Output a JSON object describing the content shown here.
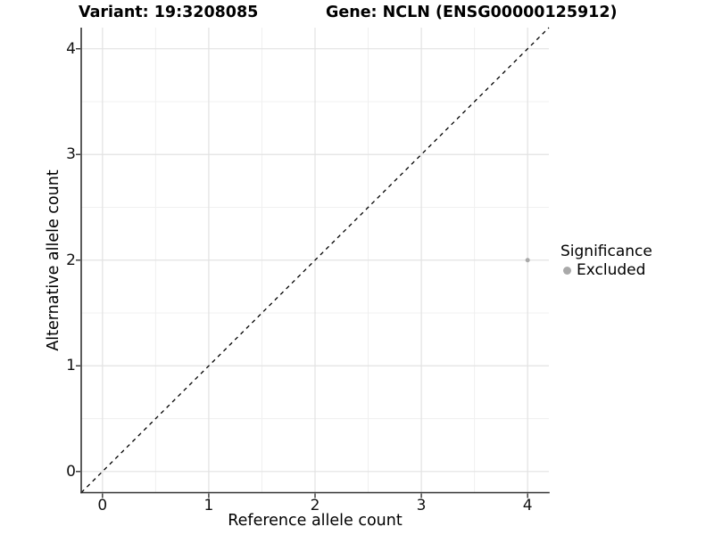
{
  "chart_data": {
    "type": "scatter",
    "title_left": "Variant: 19:3208085",
    "title_right": "Gene: NCLN (ENSG00000125912)",
    "xlabel": "Reference allele count",
    "ylabel": "Alternative allele count",
    "xlim": [
      -0.2,
      4.2
    ],
    "ylim": [
      -0.2,
      4.2
    ],
    "x_ticks": [
      0,
      1,
      2,
      3,
      4
    ],
    "y_ticks": [
      0,
      1,
      2,
      3,
      4
    ],
    "x_minor_ticks": [
      0.5,
      1.5,
      2.5,
      3.5
    ],
    "y_minor_ticks": [
      0.5,
      1.5,
      2.5,
      3.5
    ],
    "grid": true,
    "legend_position": "right",
    "reference_line": {
      "slope": 1,
      "intercept": 0,
      "style": "dashed"
    },
    "series": [
      {
        "name": "Excluded",
        "marker": "circle",
        "color": "#a9a9a9",
        "points": [
          {
            "x": 4,
            "y": 2
          }
        ]
      }
    ],
    "legend": {
      "title": "Significance",
      "items": [
        {
          "label": "Excluded",
          "color": "#a9a9a9",
          "marker": "circle"
        }
      ]
    },
    "colors": {
      "background": "#ffffff",
      "grid_major": "#e2e2e2",
      "grid_minor": "#f0f0f0",
      "axis_line": "#333333",
      "tick_mark": "#333333",
      "reference_line": "#000000",
      "text": "#000000"
    }
  }
}
